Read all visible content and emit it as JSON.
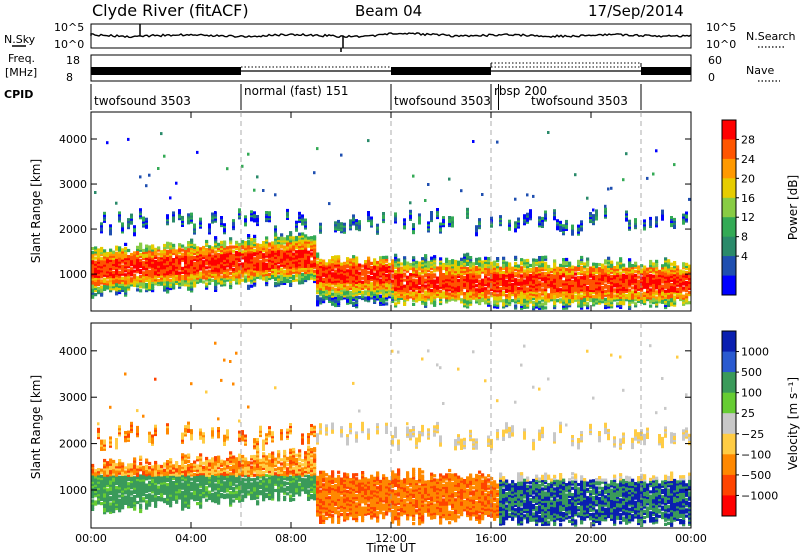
{
  "header": {
    "station": "Clyde River (fitACF)",
    "beam": "Beam 04",
    "date": "17/Sep/2014"
  },
  "summary": {
    "nsky_label": "N.Sky",
    "nsearch_label": "N.Search",
    "freq_label_1": "Freq.",
    "freq_label_2": "[MHz]",
    "nave_label": "Nave",
    "cpid_label": "CPID",
    "noise_ticks": [
      "10^5",
      "10^0"
    ],
    "freq_ticks": [
      "18",
      "8"
    ],
    "nave_ticks": [
      "60",
      "0"
    ]
  },
  "cpid_segments": [
    {
      "label": "twofsound 3503",
      "start_hour": 0,
      "end_hour": 6
    },
    {
      "label": "normal (fast) 151",
      "start_hour": 6,
      "end_hour": 12
    },
    {
      "label": "twofsound 3503",
      "start_hour": 12,
      "end_hour": 16
    },
    {
      "label": "rbsp 200",
      "start_hour": 16,
      "end_hour": 16.3
    },
    {
      "label": "twofsound 3503",
      "start_hour": 16.3,
      "end_hour": 24
    }
  ],
  "chart_data": [
    {
      "type": "heatmap",
      "name": "power-panel",
      "ylabel": "Slant Range [km]",
      "xlim": [
        0,
        24
      ],
      "ylim": [
        180,
        4600
      ],
      "yticks": [
        1000,
        2000,
        3000,
        4000
      ],
      "x_ticks": [
        "00:00",
        "04:00",
        "08:00",
        "12:00",
        "16:00",
        "20:00",
        "00:00"
      ],
      "x_tick_hours": [
        0,
        4,
        8,
        12,
        16,
        20,
        24
      ],
      "colorbar": {
        "label": "Power [dB]",
        "tick_labels": [
          "28",
          "24",
          "20",
          "16",
          "12",
          "8",
          "4"
        ],
        "colors": [
          "#ff0000",
          "#ff5500",
          "#ff9900",
          "#e6cc00",
          "#88cc44",
          "#33aa55",
          "#2a8a6a",
          "#1f4fb0",
          "#0000ff"
        ]
      }
    },
    {
      "type": "heatmap",
      "name": "velocity-panel",
      "ylabel": "Slant Range [km]",
      "xlabel": "Time UT",
      "xlim": [
        0,
        24
      ],
      "ylim": [
        180,
        4600
      ],
      "yticks": [
        1000,
        2000,
        3000,
        4000
      ],
      "x_ticks": [
        "00:00",
        "04:00",
        "08:00",
        "12:00",
        "16:00",
        "20:00",
        "00:00"
      ],
      "x_tick_hours": [
        0,
        4,
        8,
        12,
        16,
        20,
        24
      ],
      "colorbar": {
        "label": "Velocity [m s⁻¹]",
        "tick_labels": [
          "1000",
          "500",
          "100",
          "25",
          "−25",
          "−100",
          "−500",
          "−1000"
        ],
        "colors": [
          "#0a1fb0",
          "#2a5ad0",
          "#3a9a5a",
          "#66cc33",
          "#c8c8c8",
          "#ffcc44",
          "#ff8800",
          "#ff4400",
          "#ff0000"
        ]
      }
    }
  ]
}
